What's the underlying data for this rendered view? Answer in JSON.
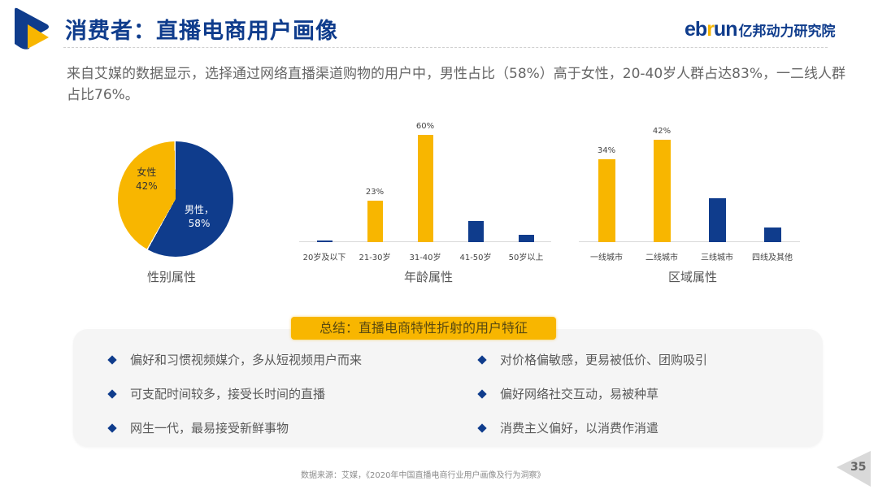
{
  "header": {
    "title": "消费者：直播电商用户画像",
    "brand_en_pre": "eb",
    "brand_en_accent": "r",
    "brand_en_post": "un",
    "brand_cn": "亿邦动力研究院",
    "logo_icon": "play-triangle-logo"
  },
  "intro": {
    "text": "来自艾媒的数据显示，选择通过网络直播渠道购物的用户中，男性占比（58%）高于女性，20-40岁人群占达83%，一二线人群占比76%。"
  },
  "colors": {
    "primary_blue": "#0f3c8c",
    "accent_yellow": "#f8b600",
    "text_gray": "#595959"
  },
  "charts": {
    "gender": {
      "caption": "性别属性",
      "female_label": "女性",
      "female_value": "42%",
      "male_label": "男性，",
      "male_value": "58%"
    },
    "age": {
      "caption": "年龄属性",
      "value_labels": [
        "",
        "23%",
        "60%",
        "",
        ""
      ],
      "categories": [
        "20岁及以下",
        "21-30岁",
        "31-40岁",
        "41-50岁",
        "50岁以上"
      ]
    },
    "region": {
      "caption": "区域属性",
      "value_labels": [
        "34%",
        "42%",
        "",
        ""
      ],
      "categories": [
        "一线城市",
        "二线城市",
        "三线城市",
        "四线及其他"
      ]
    }
  },
  "chart_data": [
    {
      "type": "pie",
      "title": "性别属性",
      "categories": [
        "男性",
        "女性"
      ],
      "values": [
        58,
        42
      ],
      "colors": [
        "#0f3c8c",
        "#f8b600"
      ]
    },
    {
      "type": "bar",
      "title": "年龄属性",
      "categories": [
        "20岁及以下",
        "21-30岁",
        "31-40岁",
        "41-50岁",
        "50岁以上"
      ],
      "values": [
        1,
        23,
        60,
        12,
        4
      ],
      "labeled_values": {
        "21-30岁": "23%",
        "31-40岁": "60%"
      },
      "colors": [
        "#0f3c8c",
        "#f8b600",
        "#f8b600",
        "#0f3c8c",
        "#0f3c8c"
      ],
      "xlabel": "",
      "ylabel": "",
      "ylim": [
        0,
        60
      ],
      "grid": false
    },
    {
      "type": "bar",
      "title": "区域属性",
      "categories": [
        "一线城市",
        "二线城市",
        "三线城市",
        "四线及其他"
      ],
      "values": [
        34,
        42,
        18,
        6
      ],
      "labeled_values": {
        "一线城市": "34%",
        "二线城市": "42%"
      },
      "colors": [
        "#f8b600",
        "#f8b600",
        "#0f3c8c",
        "#0f3c8c"
      ],
      "xlabel": "",
      "ylabel": "",
      "ylim": [
        0,
        42
      ],
      "grid": false
    }
  ],
  "summary": {
    "title": "总结：直播电商特性折射的用户特征",
    "left_items": [
      "偏好和习惯视频媒介，多从短视频用户而来",
      "可支配时间较多，接受长时间的直播",
      "网生一代，最易接受新鲜事物"
    ],
    "right_items": [
      "对价格偏敏感，更易被低价、团购吸引",
      "偏好网络社交互动，易被种草",
      "消费主义偏好，以消费作消遣"
    ]
  },
  "footer": {
    "source": "数据来源：艾媒，《2020年中国直播电商行业用户画像及行为洞察》",
    "page_number": "35"
  }
}
